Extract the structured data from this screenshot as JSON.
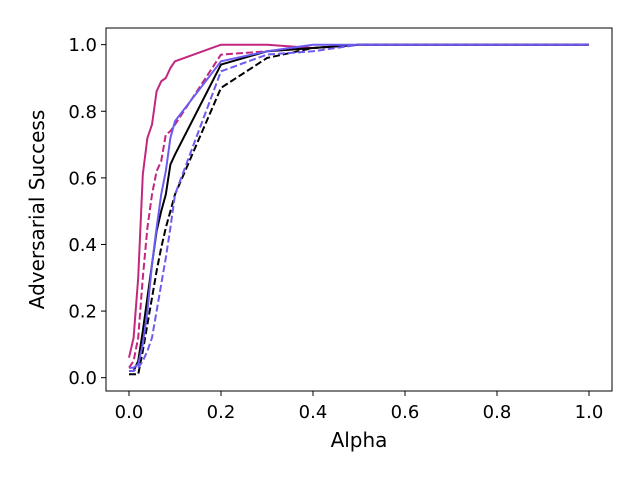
{
  "chart_data": {
    "type": "line",
    "title": "",
    "xlabel": "Alpha",
    "ylabel": "Adversarial Success",
    "xlim": [
      -0.05,
      1.05
    ],
    "ylim": [
      -0.04,
      1.05
    ],
    "xticks": [
      0.0,
      0.2,
      0.4,
      0.6,
      0.8,
      1.0
    ],
    "xtick_labels": [
      "0.0",
      "0.2",
      "0.4",
      "0.6",
      "0.8",
      "1.0"
    ],
    "yticks": [
      0.0,
      0.2,
      0.4,
      0.6,
      0.8,
      1.0
    ],
    "ytick_labels": [
      "0.0",
      "0.2",
      "0.4",
      "0.6",
      "0.8",
      "1.0"
    ],
    "grid": false,
    "legend": "none",
    "series": [
      {
        "color": "#c2277f",
        "dash": "solid",
        "x": [
          0.0,
          0.01,
          0.02,
          0.03,
          0.04,
          0.05,
          0.06,
          0.07,
          0.08,
          0.09,
          0.1,
          0.2,
          0.3,
          0.4,
          0.5,
          1.0
        ],
        "y": [
          0.06,
          0.12,
          0.3,
          0.61,
          0.72,
          0.76,
          0.86,
          0.89,
          0.9,
          0.93,
          0.95,
          1.0,
          1.0,
          0.99,
          1.0,
          1.0
        ]
      },
      {
        "color": "#c2277f",
        "dash": "dashed",
        "x": [
          0.0,
          0.01,
          0.02,
          0.03,
          0.04,
          0.05,
          0.06,
          0.07,
          0.08,
          0.09,
          0.1,
          0.2,
          0.3,
          0.4,
          0.5,
          1.0
        ],
        "y": [
          0.03,
          0.05,
          0.12,
          0.3,
          0.45,
          0.55,
          0.62,
          0.65,
          0.73,
          0.74,
          0.76,
          0.97,
          0.98,
          0.99,
          1.0,
          1.0
        ]
      },
      {
        "color": "#000000",
        "dash": "solid",
        "x": [
          0.0,
          0.01,
          0.02,
          0.03,
          0.04,
          0.05,
          0.06,
          0.07,
          0.08,
          0.09,
          0.1,
          0.2,
          0.3,
          0.4,
          0.5,
          1.0
        ],
        "y": [
          0.02,
          0.02,
          0.05,
          0.14,
          0.24,
          0.34,
          0.44,
          0.5,
          0.55,
          0.64,
          0.67,
          0.94,
          0.98,
          0.99,
          1.0,
          1.0
        ]
      },
      {
        "color": "#000000",
        "dash": "dashed",
        "x": [
          0.0,
          0.01,
          0.02,
          0.03,
          0.04,
          0.05,
          0.06,
          0.07,
          0.08,
          0.09,
          0.1,
          0.2,
          0.3,
          0.4,
          0.5,
          1.0
        ],
        "y": [
          0.01,
          0.01,
          0.01,
          0.08,
          0.16,
          0.24,
          0.32,
          0.39,
          0.45,
          0.5,
          0.55,
          0.87,
          0.96,
          0.99,
          1.0,
          1.0
        ]
      },
      {
        "color": "#6b5bf0",
        "dash": "solid",
        "x": [
          0.0,
          0.01,
          0.02,
          0.03,
          0.04,
          0.05,
          0.06,
          0.07,
          0.08,
          0.09,
          0.1,
          0.2,
          0.3,
          0.4,
          0.5,
          1.0
        ],
        "y": [
          0.03,
          0.03,
          0.04,
          0.1,
          0.2,
          0.34,
          0.45,
          0.55,
          0.62,
          0.72,
          0.77,
          0.95,
          0.98,
          1.0,
          1.0,
          1.0
        ]
      },
      {
        "color": "#6b5bf0",
        "dash": "dashed",
        "x": [
          0.0,
          0.01,
          0.02,
          0.03,
          0.04,
          0.05,
          0.06,
          0.07,
          0.08,
          0.09,
          0.1,
          0.2,
          0.3,
          0.4,
          0.5,
          1.0
        ],
        "y": [
          0.02,
          0.02,
          0.03,
          0.05,
          0.08,
          0.12,
          0.2,
          0.28,
          0.36,
          0.45,
          0.55,
          0.92,
          0.97,
          0.98,
          1.0,
          1.0
        ]
      }
    ]
  }
}
